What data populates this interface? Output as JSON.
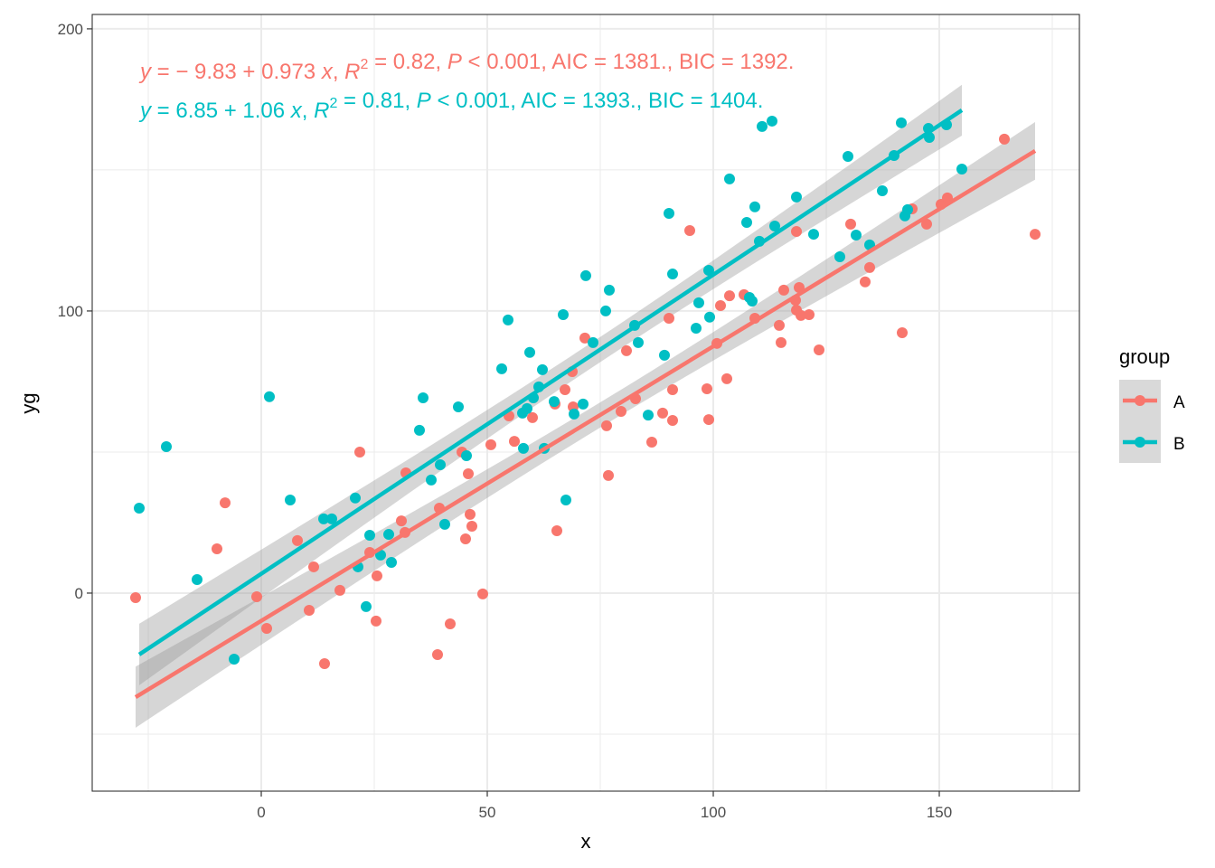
{
  "chart_data": {
    "type": "scatter",
    "title": "",
    "xlabel": "x",
    "ylabel": "yg",
    "xlim": [
      -37.4,
      181
    ],
    "ylim": [
      -70.2,
      205.1
    ],
    "x_ticks": [
      0,
      50,
      100,
      150
    ],
    "y_ticks": [
      0,
      100,
      200
    ],
    "x_minor_grid": [
      -25,
      25,
      75,
      125,
      175
    ],
    "y_minor_grid": [
      -50,
      50,
      150
    ],
    "grid": true,
    "legend": {
      "title": "group",
      "placement": "right",
      "entries": [
        {
          "label": "A",
          "color": "#F8766D"
        },
        {
          "label": "B",
          "color": "#00BFC4"
        }
      ]
    },
    "annotations": [
      {
        "group": "A",
        "color": "#F8766D",
        "y_sym": "y",
        "eq": " = − 9.83 + 0.973 ",
        "x_sym": "x",
        "r_pre": ", ",
        "r_sym": "R",
        "r_sup": "2",
        "r_val": " = 0.82, ",
        "p_sym": "P",
        "rest": " < 0.001, AIC = 1381., BIC = 1392."
      },
      {
        "group": "B",
        "color": "#00BFC4",
        "y_sym": "y",
        "eq": " = 6.85 + 1.06 ",
        "x_sym": "x",
        "r_pre": ", ",
        "r_sym": "R",
        "r_sup": "2",
        "r_val": " = 0.81, ",
        "p_sym": "P",
        "rest": " < 0.001, AIC = 1393., BIC = 1404."
      }
    ],
    "series": [
      {
        "name": "A",
        "color": "#F8766D",
        "fit": {
          "intercept": -9.83,
          "slope": 0.973,
          "x_range": [
            -27.8,
            171.2
          ]
        },
        "x": [
          -27.8,
          -9.8,
          -8,
          -1,
          1.2,
          8,
          10.6,
          11.6,
          14,
          17.4,
          21.8,
          24,
          25.6,
          25.4,
          31,
          31.8,
          32,
          39,
          39.4,
          41.8,
          44.4,
          45.2,
          45.8,
          46.2,
          46.6,
          49,
          50.8,
          54.8,
          56,
          60,
          65,
          65.4,
          67.2,
          68.8,
          69,
          71.6,
          76.4,
          76.8,
          79.6,
          80.8,
          82.8,
          86.4,
          88.8,
          90.2,
          91,
          91,
          94.8,
          98.6,
          99,
          100.8,
          101.6,
          103,
          103.6,
          106.8,
          109.2,
          114.6,
          115,
          115.6,
          118.2,
          118.4,
          118.4,
          119,
          119.4,
          121.2,
          123.4,
          130.4,
          133.6,
          134.6,
          141.8,
          144,
          147.2,
          150.4,
          151.8,
          164.4,
          171.2
        ],
        "y": [
          -1.6,
          15.7,
          32,
          -1.3,
          -12.5,
          18.6,
          -6.1,
          9.3,
          -25,
          1,
          50,
          14.4,
          6.1,
          -9.9,
          25.6,
          21.5,
          42.6,
          -21.8,
          30.1,
          -10.9,
          50,
          19.2,
          42.3,
          27.9,
          23.7,
          -0.3,
          52.6,
          62.8,
          53.8,
          62.2,
          67,
          22.1,
          72.1,
          78.5,
          66,
          90.4,
          59.3,
          41.7,
          64.4,
          85.9,
          68.9,
          53.5,
          63.8,
          97.4,
          61.2,
          72.1,
          128.5,
          72.4,
          61.5,
          88.5,
          101.9,
          76,
          105.4,
          105.8,
          97.4,
          94.9,
          88.8,
          107.4,
          103.8,
          128.2,
          100.3,
          108.3,
          98.4,
          98.7,
          86.2,
          130.8,
          110.3,
          115.4,
          92.3,
          136.2,
          130.8,
          137.8,
          140.1,
          160.9,
          127.2
        ]
      },
      {
        "name": "B",
        "color": "#00BFC4",
        "fit": {
          "intercept": 6.85,
          "slope": 1.06,
          "x_range": [
            -27,
            155
          ]
        },
        "x": [
          -27,
          -21,
          -14.2,
          -6,
          1.8,
          6.4,
          13.8,
          15.6,
          20.8,
          21.4,
          23.2,
          24,
          26.4,
          28.2,
          28.8,
          35,
          35.8,
          37.6,
          39.6,
          40.6,
          43.6,
          45.4,
          53.2,
          54.6,
          57.8,
          58,
          58.8,
          59.4,
          60.2,
          61.4,
          62.2,
          62.6,
          64.8,
          67.4,
          66.8,
          69.2,
          71.2,
          71.8,
          73.4,
          76.2,
          77,
          82.6,
          83.4,
          85.6,
          89.2,
          90.2,
          91,
          96.2,
          96.8,
          99,
          99.2,
          103.6,
          107.4,
          108,
          108.6,
          109.2,
          110.2,
          110.8,
          113,
          113.6,
          118.4,
          122.2,
          128,
          129.8,
          131.6,
          134.6,
          137.4,
          140,
          141.6,
          142.4,
          143,
          147.6,
          147.8,
          151.6,
          155
        ],
        "y": [
          30.1,
          51.9,
          4.8,
          -23.4,
          69.6,
          33,
          26.3,
          26.3,
          33.7,
          9.3,
          -4.8,
          20.5,
          13.5,
          20.8,
          10.9,
          57.7,
          69.2,
          40.1,
          45.5,
          24.4,
          66,
          48.7,
          79.5,
          96.8,
          63.8,
          51.3,
          65.4,
          85.3,
          69.2,
          73.1,
          79.2,
          51.3,
          67.9,
          33,
          98.7,
          63.5,
          67,
          112.5,
          88.8,
          100,
          107.4,
          94.9,
          88.8,
          63.1,
          84.3,
          134.6,
          113.1,
          93.9,
          102.9,
          114.4,
          97.8,
          146.8,
          131.4,
          104.8,
          103.5,
          136.9,
          124.7,
          165.4,
          167.3,
          130.1,
          140.4,
          127.2,
          119.2,
          154.8,
          126.9,
          123.4,
          142.6,
          155.1,
          166.7,
          133.7,
          135.9,
          164.7,
          161.5,
          166,
          150.3
        ]
      }
    ]
  }
}
